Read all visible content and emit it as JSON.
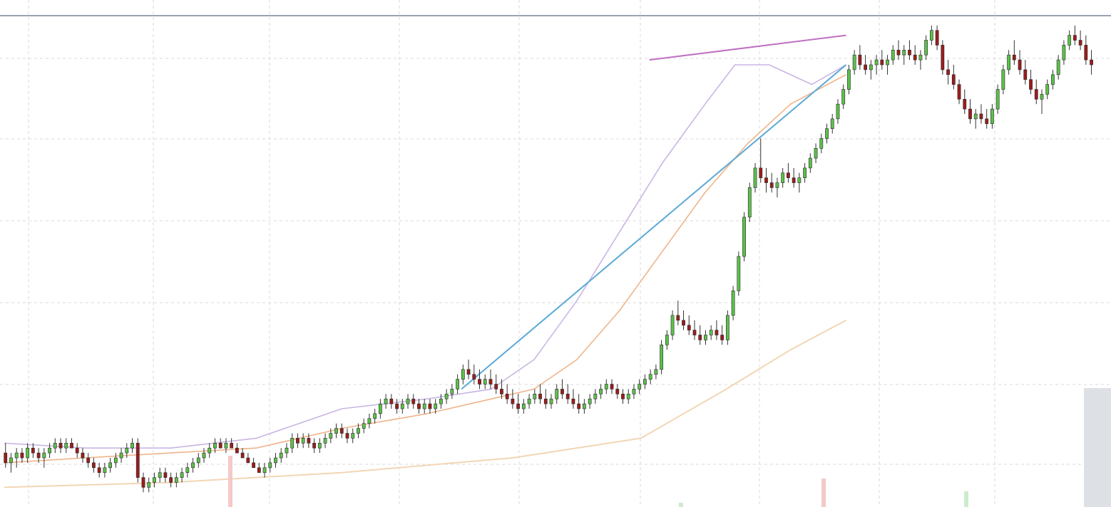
{
  "chart_data": {
    "type": "candlestick",
    "title": "",
    "xlabel": "",
    "ylabel": "",
    "grid": true,
    "colors": {
      "up": "#5cc04a",
      "down": "#9b1c1c",
      "ma_fast": "#c9b6e3",
      "ma_mid": "#efb48a",
      "ma_slow": "#f2d6b5",
      "trendline_support": "#5aa9d6",
      "trendline_resistance": "#c070c0",
      "top_line": "#9aa3b0"
    },
    "ylim": [
      0,
      100
    ],
    "xlim": [
      0,
      260
    ],
    "candles": [
      [
        1,
        11,
        13,
        8,
        9
      ],
      [
        2,
        9,
        11,
        7,
        10
      ],
      [
        3,
        10,
        12,
        8,
        11
      ],
      [
        4,
        11,
        12,
        9,
        10
      ],
      [
        5,
        10,
        13,
        9,
        12
      ],
      [
        6,
        12,
        13,
        10,
        11
      ],
      [
        7,
        11,
        12,
        9,
        10
      ],
      [
        8,
        10,
        12,
        8,
        11
      ],
      [
        9,
        11,
        13,
        10,
        12
      ],
      [
        10,
        12,
        14,
        11,
        13
      ],
      [
        11,
        13,
        14,
        11,
        12
      ],
      [
        12,
        12,
        14,
        11,
        13
      ],
      [
        13,
        13,
        14,
        12,
        12
      ],
      [
        14,
        12,
        13,
        10,
        11
      ],
      [
        15,
        11,
        12,
        9,
        10
      ],
      [
        16,
        10,
        11,
        8,
        9
      ],
      [
        17,
        9,
        10,
        7,
        8
      ],
      [
        18,
        8,
        9,
        6,
        7
      ],
      [
        19,
        7,
        9,
        6,
        8
      ],
      [
        20,
        8,
        10,
        7,
        9
      ],
      [
        21,
        9,
        11,
        8,
        10
      ],
      [
        22,
        10,
        12,
        9,
        11
      ],
      [
        23,
        11,
        13,
        10,
        12
      ],
      [
        24,
        12,
        14,
        11,
        13
      ],
      [
        25,
        13,
        14,
        5,
        6
      ],
      [
        26,
        6,
        7,
        3,
        4
      ],
      [
        27,
        4,
        6,
        3,
        5
      ],
      [
        28,
        5,
        7,
        4,
        6
      ],
      [
        29,
        6,
        8,
        5,
        7
      ],
      [
        30,
        7,
        8,
        5,
        6
      ],
      [
        31,
        6,
        7,
        4,
        5
      ],
      [
        32,
        5,
        7,
        4,
        6
      ],
      [
        33,
        6,
        8,
        5,
        7
      ],
      [
        34,
        7,
        9,
        6,
        8
      ],
      [
        35,
        8,
        10,
        7,
        9
      ],
      [
        36,
        9,
        11,
        8,
        10
      ],
      [
        37,
        10,
        12,
        9,
        11
      ],
      [
        38,
        11,
        13,
        10,
        12
      ],
      [
        39,
        12,
        14,
        11,
        13
      ],
      [
        40,
        13,
        14,
        12,
        12
      ],
      [
        41,
        12,
        14,
        11,
        13
      ],
      [
        42,
        13,
        14,
        12,
        12
      ],
      [
        43,
        12,
        13,
        11,
        11
      ],
      [
        44,
        11,
        12,
        10,
        10
      ],
      [
        45,
        10,
        11,
        9,
        9
      ],
      [
        46,
        9,
        10,
        8,
        8
      ],
      [
        47,
        8,
        9,
        7,
        7
      ],
      [
        48,
        7,
        9,
        6,
        8
      ],
      [
        49,
        8,
        10,
        7,
        9
      ],
      [
        50,
        9,
        11,
        8,
        10
      ],
      [
        51,
        10,
        12,
        9,
        11
      ],
      [
        52,
        11,
        13,
        10,
        12
      ],
      [
        53,
        12,
        15,
        11,
        14
      ],
      [
        54,
        14,
        15,
        12,
        13
      ],
      [
        55,
        13,
        15,
        12,
        14
      ],
      [
        56,
        14,
        15,
        12,
        13
      ],
      [
        57,
        13,
        14,
        11,
        12
      ],
      [
        58,
        12,
        14,
        11,
        13
      ],
      [
        59,
        13,
        15,
        12,
        14
      ],
      [
        60,
        14,
        16,
        13,
        15
      ],
      [
        61,
        15,
        17,
        14,
        16
      ],
      [
        62,
        16,
        17,
        14,
        15
      ],
      [
        63,
        15,
        16,
        13,
        14
      ],
      [
        64,
        14,
        16,
        13,
        15
      ],
      [
        65,
        15,
        17,
        14,
        16
      ],
      [
        66,
        16,
        18,
        15,
        17
      ],
      [
        67,
        17,
        19,
        16,
        18
      ],
      [
        68,
        18,
        20,
        17,
        19
      ],
      [
        69,
        19,
        22,
        18,
        21
      ],
      [
        70,
        21,
        23,
        20,
        22
      ],
      [
        71,
        22,
        23,
        20,
        21
      ],
      [
        72,
        21,
        22,
        19,
        20
      ],
      [
        73,
        20,
        22,
        19,
        21
      ],
      [
        74,
        21,
        23,
        20,
        22
      ],
      [
        75,
        22,
        23,
        20,
        21
      ],
      [
        76,
        21,
        22,
        19,
        20
      ],
      [
        77,
        20,
        22,
        19,
        21
      ],
      [
        78,
        21,
        22,
        19,
        20
      ],
      [
        79,
        20,
        22,
        19,
        21
      ],
      [
        80,
        21,
        23,
        20,
        22
      ],
      [
        81,
        22,
        24,
        21,
        23
      ],
      [
        82,
        23,
        25,
        22,
        24
      ],
      [
        83,
        24,
        27,
        23,
        26
      ],
      [
        84,
        26,
        29,
        25,
        28
      ],
      [
        85,
        28,
        30,
        26,
        27
      ],
      [
        86,
        27,
        29,
        25,
        26
      ],
      [
        87,
        26,
        28,
        24,
        25
      ],
      [
        88,
        25,
        27,
        24,
        26
      ],
      [
        89,
        26,
        28,
        24,
        25
      ],
      [
        90,
        25,
        27,
        23,
        24
      ],
      [
        91,
        24,
        26,
        22,
        23
      ],
      [
        92,
        23,
        25,
        21,
        22
      ],
      [
        93,
        22,
        24,
        20,
        21
      ],
      [
        94,
        21,
        23,
        19,
        20
      ],
      [
        95,
        20,
        22,
        19,
        21
      ],
      [
        96,
        21,
        23,
        20,
        22
      ],
      [
        97,
        22,
        24,
        21,
        23
      ],
      [
        98,
        23,
        25,
        21,
        22
      ],
      [
        99,
        22,
        24,
        20,
        21
      ],
      [
        100,
        21,
        23,
        20,
        22
      ],
      [
        101,
        22,
        25,
        21,
        24
      ],
      [
        102,
        24,
        26,
        22,
        23
      ],
      [
        103,
        23,
        25,
        21,
        22
      ],
      [
        104,
        22,
        24,
        20,
        21
      ],
      [
        105,
        21,
        23,
        19,
        20
      ],
      [
        106,
        20,
        22,
        19,
        21
      ],
      [
        107,
        21,
        23,
        20,
        22
      ],
      [
        108,
        22,
        24,
        21,
        23
      ],
      [
        109,
        23,
        25,
        22,
        24
      ],
      [
        110,
        24,
        26,
        23,
        25
      ],
      [
        111,
        25,
        26,
        23,
        24
      ],
      [
        112,
        24,
        25,
        22,
        23
      ],
      [
        113,
        23,
        24,
        21,
        22
      ],
      [
        114,
        22,
        24,
        21,
        23
      ],
      [
        115,
        23,
        25,
        22,
        24
      ],
      [
        116,
        24,
        26,
        23,
        25
      ],
      [
        117,
        25,
        27,
        24,
        26
      ],
      [
        118,
        26,
        28,
        25,
        27
      ],
      [
        119,
        27,
        29,
        26,
        28
      ],
      [
        120,
        28,
        34,
        27,
        33
      ],
      [
        121,
        33,
        36,
        32,
        35
      ],
      [
        122,
        35,
        40,
        34,
        39
      ],
      [
        123,
        39,
        42,
        37,
        38
      ],
      [
        124,
        38,
        40,
        36,
        37
      ],
      [
        125,
        37,
        39,
        35,
        36
      ],
      [
        126,
        36,
        38,
        34,
        35
      ],
      [
        127,
        35,
        37,
        33,
        34
      ],
      [
        128,
        34,
        36,
        33,
        35
      ],
      [
        129,
        35,
        37,
        34,
        36
      ],
      [
        130,
        36,
        38,
        34,
        35
      ],
      [
        131,
        35,
        37,
        33,
        34
      ],
      [
        132,
        34,
        40,
        33,
        39
      ],
      [
        133,
        39,
        45,
        38,
        44
      ],
      [
        134,
        44,
        52,
        43,
        51
      ],
      [
        135,
        51,
        60,
        50,
        59
      ],
      [
        136,
        59,
        66,
        58,
        65
      ],
      [
        137,
        65,
        70,
        64,
        69
      ],
      [
        138,
        69,
        75,
        66,
        67
      ],
      [
        139,
        67,
        69,
        64,
        66
      ],
      [
        140,
        66,
        68,
        64,
        65
      ],
      [
        141,
        65,
        67,
        63,
        66
      ],
      [
        142,
        66,
        69,
        65,
        68
      ],
      [
        143,
        68,
        70,
        66,
        67
      ],
      [
        144,
        67,
        69,
        65,
        66
      ],
      [
        145,
        66,
        68,
        64,
        67
      ],
      [
        146,
        67,
        70,
        66,
        69
      ],
      [
        147,
        69,
        72,
        68,
        71
      ],
      [
        148,
        71,
        74,
        70,
        73
      ],
      [
        149,
        73,
        76,
        72,
        75
      ],
      [
        150,
        75,
        78,
        74,
        77
      ],
      [
        151,
        77,
        80,
        76,
        79
      ],
      [
        152,
        79,
        83,
        78,
        82
      ],
      [
        153,
        82,
        86,
        81,
        85
      ],
      [
        154,
        85,
        90,
        84,
        89
      ],
      [
        155,
        89,
        93,
        88,
        92
      ],
      [
        156,
        92,
        94,
        89,
        90
      ],
      [
        157,
        90,
        92,
        88,
        89
      ],
      [
        158,
        89,
        91,
        87,
        90
      ],
      [
        159,
        90,
        92,
        88,
        91
      ],
      [
        160,
        91,
        93,
        89,
        90
      ],
      [
        161,
        90,
        92,
        88,
        91
      ],
      [
        162,
        91,
        94,
        90,
        93
      ],
      [
        163,
        93,
        95,
        91,
        92
      ],
      [
        164,
        92,
        94,
        90,
        93
      ],
      [
        165,
        93,
        95,
        91,
        92
      ],
      [
        166,
        92,
        94,
        90,
        91
      ],
      [
        167,
        91,
        93,
        89,
        92
      ],
      [
        168,
        92,
        96,
        91,
        95
      ],
      [
        169,
        95,
        98,
        94,
        97
      ],
      [
        170,
        97,
        98,
        93,
        94
      ],
      [
        171,
        94,
        95,
        88,
        89
      ],
      [
        172,
        89,
        91,
        86,
        88
      ],
      [
        173,
        88,
        90,
        85,
        86
      ],
      [
        174,
        86,
        87,
        82,
        83
      ],
      [
        175,
        83,
        85,
        80,
        81
      ],
      [
        176,
        81,
        83,
        78,
        79
      ],
      [
        177,
        79,
        81,
        77,
        80
      ],
      [
        178,
        80,
        82,
        78,
        79
      ],
      [
        179,
        79,
        81,
        77,
        78
      ],
      [
        180,
        78,
        82,
        77,
        81
      ],
      [
        181,
        81,
        86,
        80,
        85
      ],
      [
        182,
        85,
        90,
        84,
        89
      ],
      [
        183,
        89,
        93,
        88,
        92
      ],
      [
        184,
        92,
        95,
        90,
        91
      ],
      [
        185,
        91,
        93,
        88,
        89
      ],
      [
        186,
        89,
        91,
        86,
        87
      ],
      [
        187,
        87,
        89,
        84,
        85
      ],
      [
        188,
        85,
        87,
        82,
        83
      ],
      [
        189,
        83,
        85,
        80,
        84
      ],
      [
        190,
        84,
        87,
        83,
        86
      ],
      [
        191,
        86,
        89,
        85,
        88
      ],
      [
        192,
        88,
        92,
        87,
        91
      ],
      [
        193,
        91,
        95,
        90,
        94
      ],
      [
        194,
        94,
        97,
        93,
        96
      ],
      [
        195,
        96,
        98,
        94,
        95
      ],
      [
        196,
        95,
        97,
        93,
        94
      ],
      [
        197,
        94,
        96,
        90,
        91
      ],
      [
        198,
        91,
        93,
        88,
        90
      ]
    ],
    "ma_fast": [
      [
        1,
        13
      ],
      [
        20,
        12
      ],
      [
        40,
        12
      ],
      [
        60,
        14
      ],
      [
        80,
        20
      ],
      [
        100,
        22
      ],
      [
        115,
        24
      ],
      [
        125,
        30
      ],
      [
        135,
        42
      ],
      [
        145,
        56
      ],
      [
        155,
        70
      ],
      [
        165,
        82
      ],
      [
        172,
        90
      ],
      [
        180,
        90
      ],
      [
        190,
        86
      ],
      [
        198,
        90
      ]
    ],
    "ma_mid": [
      [
        1,
        9
      ],
      [
        20,
        10
      ],
      [
        40,
        11
      ],
      [
        60,
        12
      ],
      [
        80,
        16
      ],
      [
        100,
        19
      ],
      [
        115,
        22
      ],
      [
        125,
        24
      ],
      [
        135,
        30
      ],
      [
        145,
        40
      ],
      [
        155,
        52
      ],
      [
        165,
        64
      ],
      [
        175,
        74
      ],
      [
        185,
        82
      ],
      [
        198,
        88
      ]
    ],
    "ma_slow": [
      [
        1,
        4
      ],
      [
        40,
        5
      ],
      [
        80,
        7
      ],
      [
        120,
        10
      ],
      [
        150,
        14
      ],
      [
        170,
        24
      ],
      [
        185,
        32
      ],
      [
        198,
        38
      ]
    ],
    "support_trendline": [
      [
        108,
        24
      ],
      [
        198,
        90
      ]
    ],
    "resistance_trendline": [
      [
        152,
        91
      ],
      [
        198,
        96
      ]
    ]
  }
}
